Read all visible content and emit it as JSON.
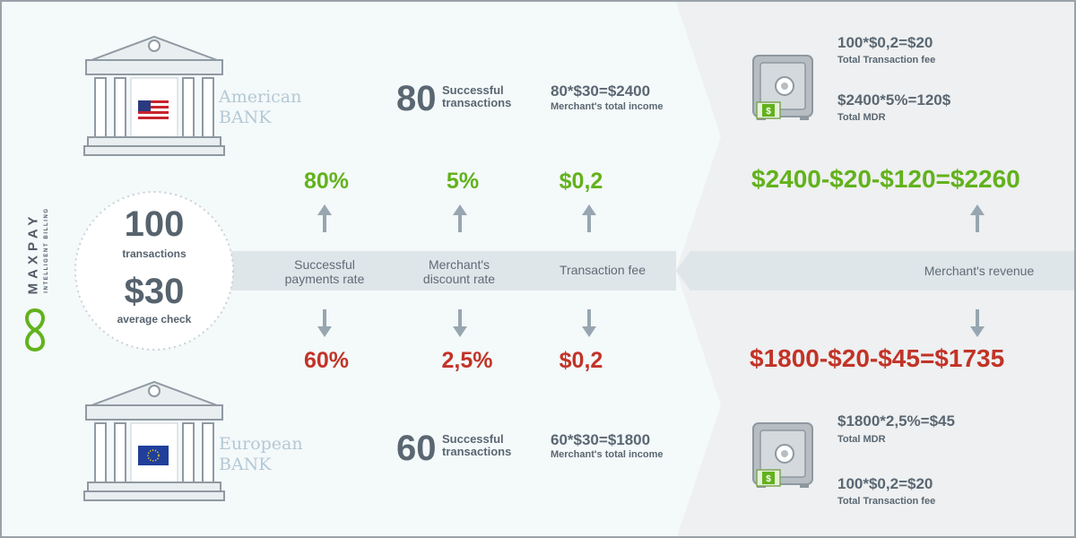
{
  "brand": {
    "name": "MAXPAY",
    "tagline": "INTELLIGENT BILLING"
  },
  "center": {
    "transactions_number": "100",
    "transactions_label": "transactions",
    "check_value": "$30",
    "check_label": "average check"
  },
  "american": {
    "bank_line1": "American",
    "bank_line2": "BANK",
    "successful_count": "80",
    "successful_line1": "Successful",
    "successful_line2": "transactions",
    "income_formula": "80*$30=$2400",
    "income_label": "Merchant's total income",
    "rate": "80%",
    "discount": "5%",
    "fee": "$0,2",
    "fee_formula": "100*$0,2=$20",
    "fee_label": "Total Transaction fee",
    "mdr_formula": "$2400*5%=120$",
    "mdr_label": "Total MDR",
    "revenue": "$2400-$20-$120=$2260"
  },
  "european": {
    "bank_line1": "European",
    "bank_line2": "BANK",
    "successful_count": "60",
    "successful_line1": "Successful",
    "successful_line2": "transactions",
    "income_formula": "60*$30=$1800",
    "income_label": "Merchant's total income",
    "rate": "60%",
    "discount": "2,5%",
    "fee": "$0,2",
    "mdr_formula": "$1800*2,5%=$45",
    "mdr_label": "Total MDR",
    "fee_formula": "100*$0,2=$20",
    "fee_label": "Total Transaction fee",
    "revenue": "$1800-$20-$45=$1735"
  },
  "labels": {
    "payments_rate_line1": "Successful",
    "payments_rate_line2": "payments rate",
    "discount_rate_line1": "Merchant's",
    "discount_rate_line2": "discount rate",
    "transaction_fee": "Transaction fee",
    "merchants_revenue": "Merchant's revenue"
  },
  "colors": {
    "green": "#62b21c",
    "red": "#c23327",
    "text_dark": "#5a6772",
    "band": "#dfe6e9",
    "bank_text": "#b4c9d5"
  },
  "icons": [
    "bank-icon",
    "us-flag-icon",
    "eu-flag-icon",
    "safe-icon",
    "money-icon",
    "arrow-up-icon",
    "arrow-down-icon",
    "infinity-logo-icon"
  ]
}
